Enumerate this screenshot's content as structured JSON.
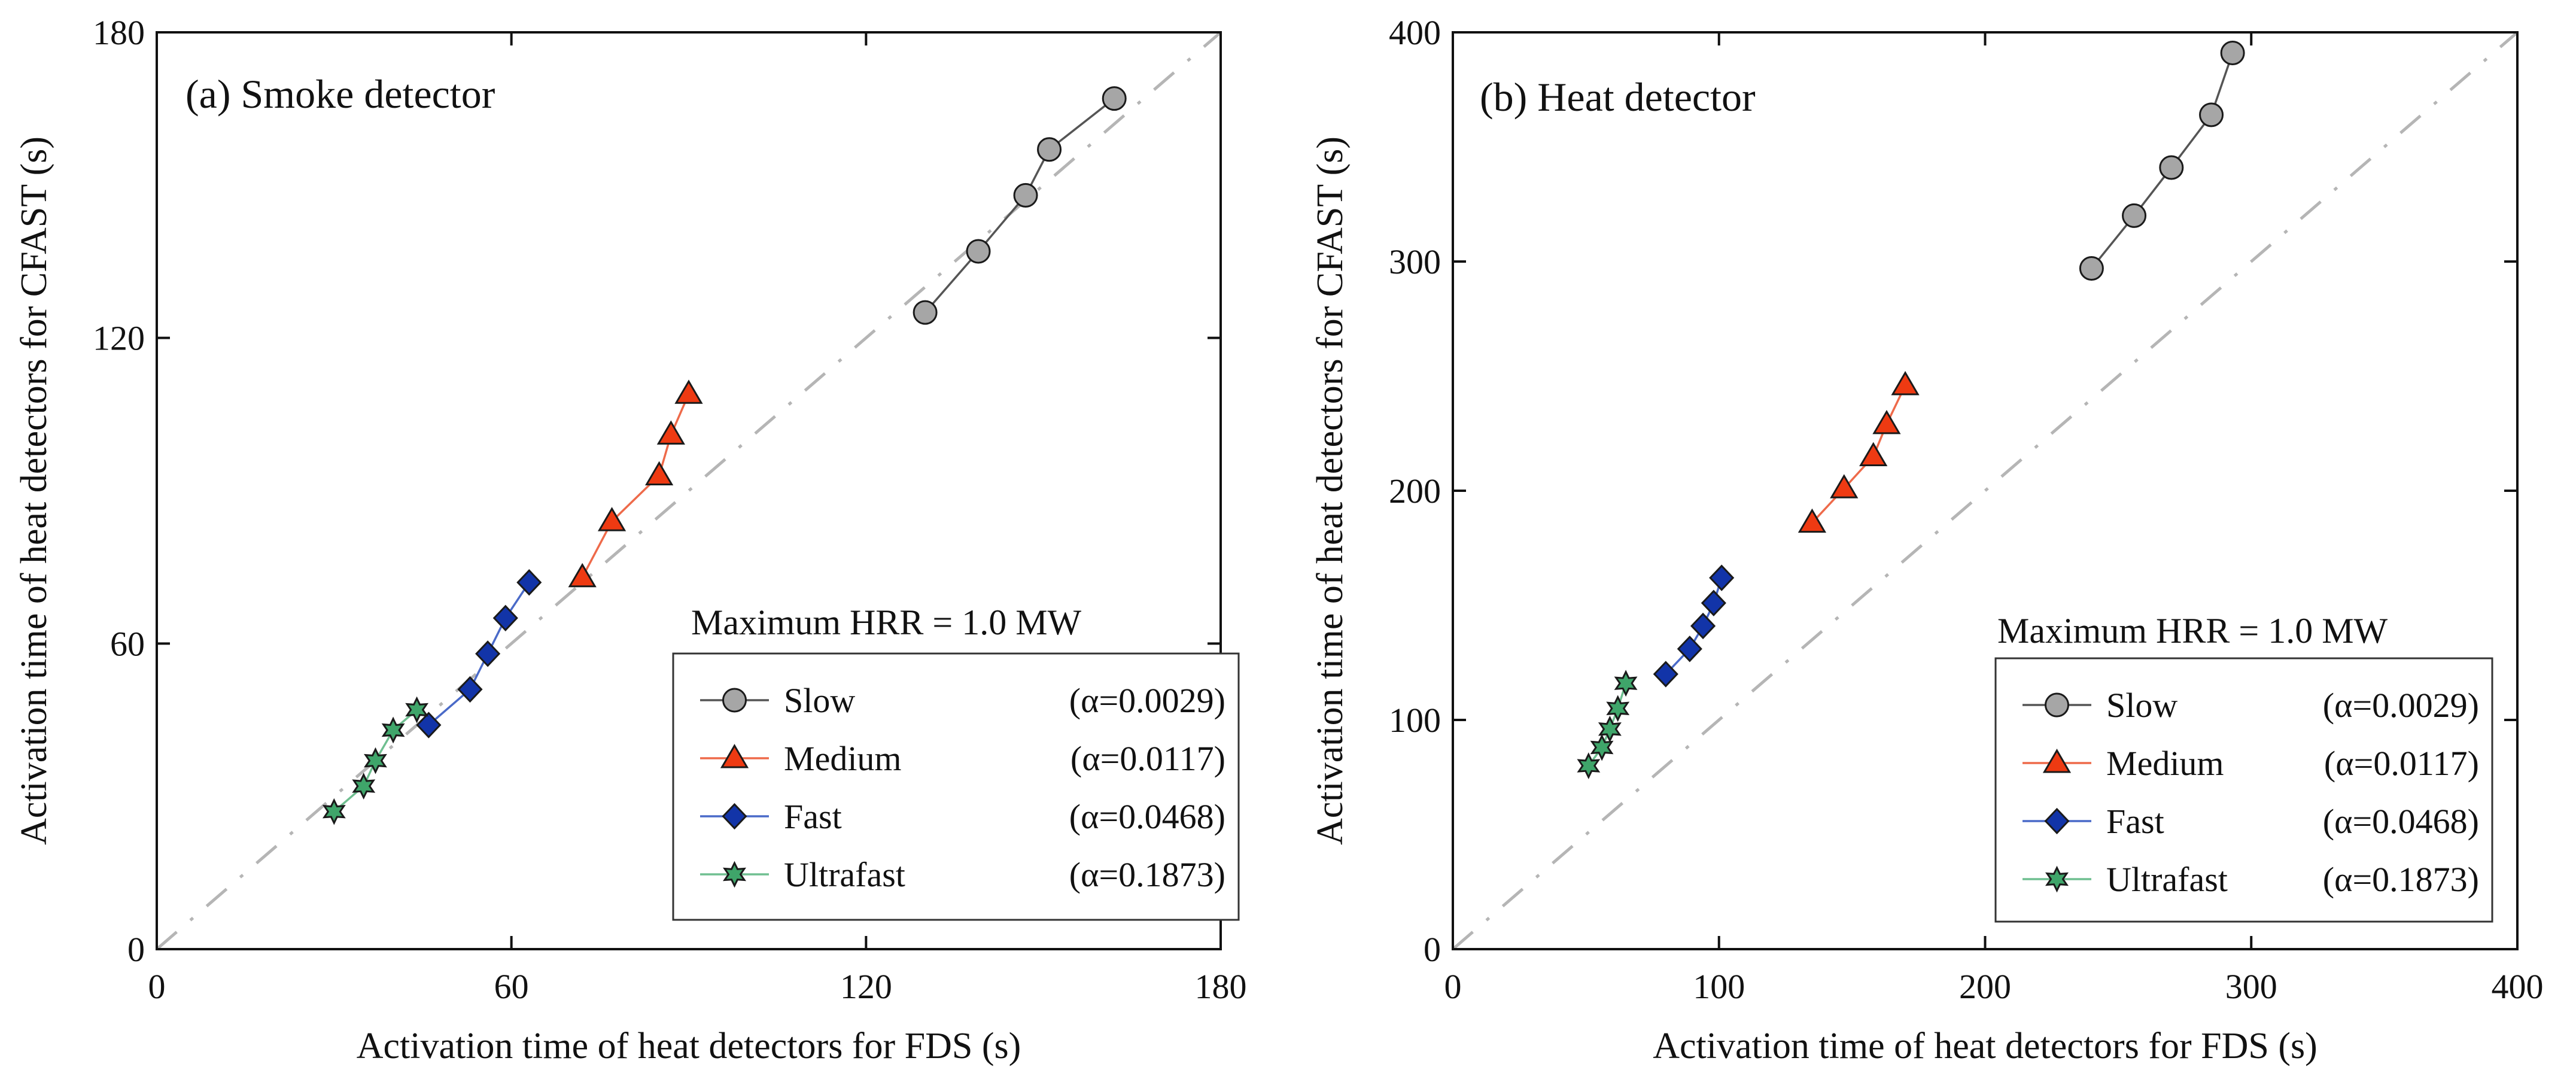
{
  "chart_data": [
    {
      "type": "scatter",
      "panel_label": "(a) Smoke detector",
      "xlabel": "Activation time of heat detectors for FDS (s)",
      "ylabel": "Activation time of heat detectors for CFAST (s)",
      "xlim": [
        0,
        180
      ],
      "ylim": [
        0,
        180
      ],
      "xticks": [
        0,
        60,
        120,
        180
      ],
      "yticks": [
        0,
        60,
        120,
        180
      ],
      "reference_line": {
        "style": "dash-dot",
        "color": "#b5b5b5",
        "from": [
          0,
          0
        ],
        "to": [
          180,
          180
        ]
      },
      "annotation": "Maximum HRR = 1.0 MW",
      "legend_position": "bottom-right",
      "series": [
        {
          "key": "slow",
          "name": "Slow",
          "alpha_label": "(α=0.0029)",
          "marker": "circle",
          "color": "#a6a6a6",
          "line_color": "#555555",
          "points": [
            [
              130,
              125
            ],
            [
              139,
              137
            ],
            [
              147,
              148
            ],
            [
              151,
              157
            ],
            [
              162,
              167
            ]
          ]
        },
        {
          "key": "medium",
          "name": "Medium",
          "alpha_label": "(α=0.0117)",
          "marker": "triangle",
          "color": "#ee3a12",
          "line_color": "#ee6a4a",
          "points": [
            [
              72,
              73
            ],
            [
              77,
              84
            ],
            [
              85,
              93
            ],
            [
              87,
              101
            ],
            [
              90,
              109
            ]
          ]
        },
        {
          "key": "fast",
          "name": "Fast",
          "alpha_label": "(α=0.0468)",
          "marker": "diamond",
          "color": "#1234a8",
          "line_color": "#4a6ac8",
          "points": [
            [
              46,
              44
            ],
            [
              53,
              51
            ],
            [
              56,
              58
            ],
            [
              59,
              65
            ],
            [
              63,
              72
            ]
          ]
        },
        {
          "key": "ultrafast",
          "name": "Ultrafast",
          "alpha_label": "(α=0.1873)",
          "marker": "star",
          "color": "#3fa56a",
          "line_color": "#6fbf90",
          "points": [
            [
              30,
              27
            ],
            [
              35,
              32
            ],
            [
              37,
              37
            ],
            [
              40,
              43
            ],
            [
              44,
              47
            ]
          ]
        }
      ]
    },
    {
      "type": "scatter",
      "panel_label": "(b) Heat detector",
      "xlabel": "Activation time of heat detectors for FDS (s)",
      "ylabel": "Activation time of heat detectors for CFAST (s)",
      "xlim": [
        0,
        400
      ],
      "ylim": [
        0,
        400
      ],
      "xticks": [
        0,
        100,
        200,
        300,
        400
      ],
      "yticks": [
        0,
        100,
        200,
        300,
        400
      ],
      "reference_line": {
        "style": "dash-dot",
        "color": "#b5b5b5",
        "from": [
          0,
          0
        ],
        "to": [
          400,
          400
        ]
      },
      "annotation": "Maximum HRR = 1.0 MW",
      "legend_position": "bottom-right",
      "series": [
        {
          "key": "slow",
          "name": "Slow",
          "alpha_label": "(α=0.0029)",
          "marker": "circle",
          "color": "#a6a6a6",
          "line_color": "#555555",
          "points": [
            [
              240,
              297
            ],
            [
              256,
              320
            ],
            [
              270,
              341
            ],
            [
              285,
              364
            ],
            [
              293,
              391
            ]
          ]
        },
        {
          "key": "medium",
          "name": "Medium",
          "alpha_label": "(α=0.0117)",
          "marker": "triangle",
          "color": "#ee3a12",
          "line_color": "#ee6a4a",
          "points": [
            [
              135,
              186
            ],
            [
              147,
              201
            ],
            [
              158,
              215
            ],
            [
              163,
              229
            ],
            [
              170,
              246
            ]
          ]
        },
        {
          "key": "fast",
          "name": "Fast",
          "alpha_label": "(α=0.0468)",
          "marker": "diamond",
          "color": "#1234a8",
          "line_color": "#4a6ac8",
          "points": [
            [
              80,
              120
            ],
            [
              89,
              131
            ],
            [
              94,
              141
            ],
            [
              98,
              151
            ],
            [
              101,
              162
            ]
          ]
        },
        {
          "key": "ultrafast",
          "name": "Ultrafast",
          "alpha_label": "(α=0.1873)",
          "marker": "star",
          "color": "#3fa56a",
          "line_color": "#6fbf90",
          "points": [
            [
              51,
              80
            ],
            [
              56,
              88
            ],
            [
              59,
              96
            ],
            [
              62,
              105
            ],
            [
              65,
              116
            ]
          ]
        }
      ]
    }
  ]
}
